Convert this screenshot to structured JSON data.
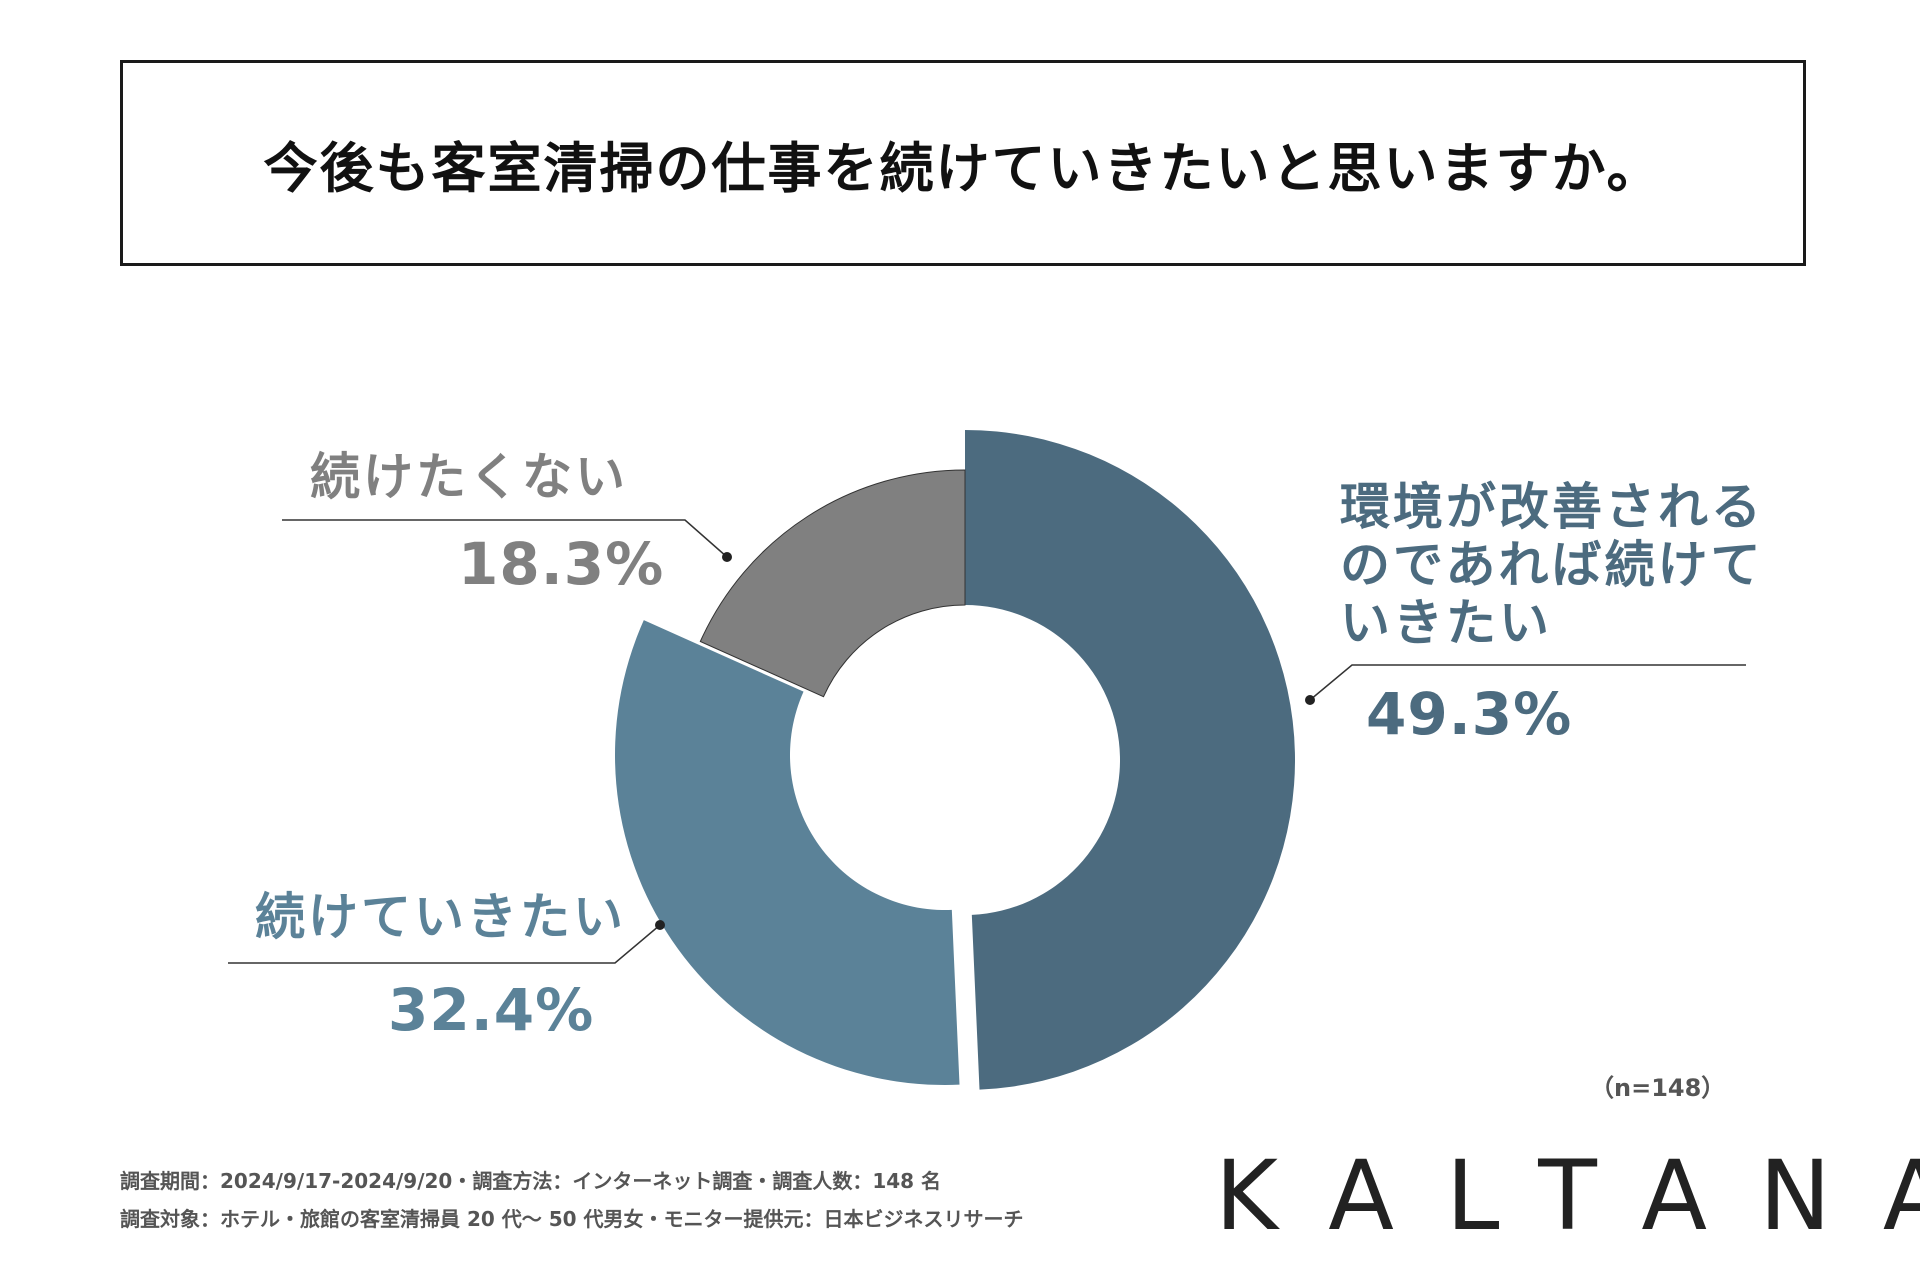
{
  "header": {
    "title": "今後も客室清掃の仕事を続けていきたいと思いますか。"
  },
  "chart_data": {
    "type": "pie",
    "donut": true,
    "categories": [
      "環境が改善されるのであれば続けていきたい",
      "続けていきたい",
      "続けたくない"
    ],
    "values": [
      49.3,
      32.4,
      18.3
    ],
    "unit": "%",
    "colors": [
      "#4c6b7f",
      "#5b8298",
      "#808080"
    ],
    "labels": [
      {
        "lines": [
          "環境が改善される",
          "のであれば続けて",
          "いきたい"
        ],
        "pct": "49.3%"
      },
      {
        "lines": [
          "続けていきたい"
        ],
        "pct": "32.4%"
      },
      {
        "lines": [
          "続けたくない"
        ],
        "pct": "18.3%"
      }
    ]
  },
  "note": {
    "n": "（n=148）"
  },
  "footer": {
    "line1": "調査期間：2024/9/17-2024/9/20・調査方法：インターネット調査・調査人数：148 名",
    "line2": "調査対象：ホテル・旅館の客室清掃員 20 代〜 50 代男女・モニター提供元：日本ビジネスリサーチ"
  },
  "brand": {
    "logo": "KALTANA"
  }
}
